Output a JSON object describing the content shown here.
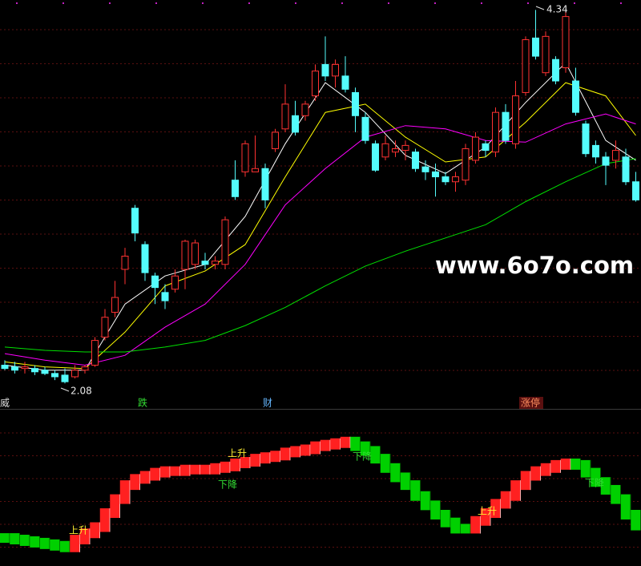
{
  "chart_data": {
    "type": "candlestick",
    "ylim": [
      1.95,
      4.4
    ],
    "up_color": "#ff3232",
    "down_color": "#54fcfc",
    "ohlc": [
      [
        2.19,
        2.22,
        2.16,
        2.17
      ],
      [
        2.18,
        2.21,
        2.14,
        2.16
      ],
      [
        2.17,
        2.21,
        2.14,
        2.18
      ],
      [
        2.17,
        2.19,
        2.13,
        2.15
      ],
      [
        2.16,
        2.18,
        2.13,
        2.14
      ],
      [
        2.14,
        2.16,
        2.1,
        2.12
      ],
      [
        2.13,
        2.17,
        2.08,
        2.09
      ],
      [
        2.12,
        2.19,
        2.11,
        2.16
      ],
      [
        2.16,
        2.19,
        2.14,
        2.18
      ],
      [
        2.19,
        2.36,
        2.18,
        2.34
      ],
      [
        2.36,
        2.53,
        2.34,
        2.48
      ],
      [
        2.51,
        2.7,
        2.48,
        2.6
      ],
      [
        2.77,
        2.9,
        2.68,
        2.85
      ],
      [
        3.14,
        3.16,
        2.94,
        2.99
      ],
      [
        2.92,
        2.94,
        2.7,
        2.75
      ],
      [
        2.73,
        2.75,
        2.56,
        2.66
      ],
      [
        2.63,
        2.68,
        2.53,
        2.58
      ],
      [
        2.65,
        2.77,
        2.63,
        2.73
      ],
      [
        2.77,
        2.95,
        2.65,
        2.94
      ],
      [
        2.8,
        2.95,
        2.77,
        2.93
      ],
      [
        2.82,
        2.87,
        2.77,
        2.8
      ],
      [
        2.8,
        2.85,
        2.77,
        2.82
      ],
      [
        2.8,
        3.09,
        2.77,
        3.07
      ],
      [
        3.31,
        3.43,
        3.19,
        3.21
      ],
      [
        3.36,
        3.55,
        3.33,
        3.53
      ],
      [
        3.36,
        3.58,
        3.36,
        3.38
      ],
      [
        3.38,
        3.41,
        3.14,
        3.19
      ],
      [
        3.5,
        3.62,
        3.48,
        3.6
      ],
      [
        3.62,
        3.89,
        3.6,
        3.77
      ],
      [
        3.7,
        3.79,
        3.58,
        3.6
      ],
      [
        3.7,
        3.79,
        3.67,
        3.77
      ],
      [
        3.82,
        4.01,
        3.79,
        3.97
      ],
      [
        4.01,
        4.18,
        3.91,
        3.94
      ],
      [
        3.94,
        4.04,
        3.87,
        4.01
      ],
      [
        3.94,
        4.06,
        3.84,
        3.86
      ],
      [
        3.84,
        3.87,
        3.6,
        3.7
      ],
      [
        3.69,
        3.72,
        3.53,
        3.55
      ],
      [
        3.53,
        3.55,
        3.36,
        3.37
      ],
      [
        3.45,
        3.58,
        3.43,
        3.53
      ],
      [
        3.48,
        3.55,
        3.45,
        3.5
      ],
      [
        3.49,
        3.55,
        3.43,
        3.52
      ],
      [
        3.48,
        3.5,
        3.36,
        3.38
      ],
      [
        3.39,
        3.43,
        3.31,
        3.36
      ],
      [
        3.36,
        3.41,
        3.21,
        3.33
      ],
      [
        3.33,
        3.36,
        3.28,
        3.3
      ],
      [
        3.3,
        3.36,
        3.24,
        3.33
      ],
      [
        3.31,
        3.53,
        3.28,
        3.5
      ],
      [
        3.43,
        3.6,
        3.41,
        3.57
      ],
      [
        3.53,
        3.55,
        3.45,
        3.49
      ],
      [
        3.48,
        3.75,
        3.45,
        3.72
      ],
      [
        3.72,
        3.77,
        3.53,
        3.55
      ],
      [
        3.53,
        3.91,
        3.5,
        3.82
      ],
      [
        3.84,
        4.18,
        3.82,
        4.16
      ],
      [
        4.17,
        4.34,
        4.04,
        4.06
      ],
      [
        3.96,
        4.21,
        3.94,
        4.18
      ],
      [
        4.04,
        4.06,
        3.89,
        3.91
      ],
      [
        3.99,
        4.33,
        3.96,
        4.3
      ],
      [
        3.91,
        3.99,
        3.7,
        3.72
      ],
      [
        3.65,
        3.67,
        3.45,
        3.47
      ],
      [
        3.52,
        3.55,
        3.41,
        3.45
      ],
      [
        3.45,
        3.48,
        3.28,
        3.4
      ],
      [
        3.43,
        3.55,
        3.38,
        3.49
      ],
      [
        3.45,
        3.5,
        3.28,
        3.3
      ],
      [
        3.3,
        3.36,
        3.18,
        3.19
      ]
    ],
    "series": [
      {
        "color": "#ffffff",
        "x": [
          0,
          4,
          8,
          12,
          16,
          20,
          24,
          28,
          32,
          36,
          40,
          44,
          48,
          52,
          56,
          60,
          63
        ],
        "values": [
          2.19,
          2.16,
          2.16,
          2.56,
          2.73,
          2.8,
          3.09,
          3.53,
          3.9,
          3.72,
          3.46,
          3.35,
          3.51,
          3.78,
          4.02,
          3.55,
          3.43
        ]
      },
      {
        "color": "#ffff00",
        "x": [
          0,
          4,
          8,
          12,
          16,
          20,
          24,
          28,
          32,
          36,
          40,
          44,
          48,
          52,
          56,
          60,
          63
        ],
        "values": [
          2.21,
          2.18,
          2.17,
          2.39,
          2.67,
          2.76,
          2.92,
          3.33,
          3.72,
          3.77,
          3.57,
          3.42,
          3.45,
          3.66,
          3.9,
          3.82,
          3.58
        ]
      },
      {
        "color": "#ff00ff",
        "x": [
          0,
          4,
          8,
          12,
          16,
          20,
          24,
          28,
          32,
          36,
          40,
          44,
          48,
          52,
          56,
          60,
          63
        ],
        "values": [
          2.26,
          2.22,
          2.19,
          2.25,
          2.42,
          2.56,
          2.8,
          3.16,
          3.38,
          3.57,
          3.64,
          3.62,
          3.55,
          3.54,
          3.65,
          3.71,
          3.65
        ]
      },
      {
        "color": "#00e000",
        "x": [
          0,
          4,
          8,
          12,
          16,
          20,
          24,
          28,
          32,
          36,
          40,
          44,
          48,
          52,
          56,
          60,
          63
        ],
        "values": [
          2.3,
          2.28,
          2.27,
          2.27,
          2.3,
          2.34,
          2.43,
          2.54,
          2.67,
          2.79,
          2.88,
          2.96,
          3.04,
          3.18,
          3.3,
          3.41,
          3.44
        ]
      }
    ],
    "high_marker": 4.34,
    "low_marker": 2.08,
    "watermark": "www.6o7o.com",
    "signals": [
      "威",
      "跌",
      "财",
      "涨停"
    ],
    "indicator": {
      "ylim": [
        0,
        100
      ],
      "up_color": "#ff2020",
      "down_color": "#00d000",
      "values": [
        18,
        17,
        16,
        15,
        14,
        13,
        12,
        17,
        21,
        25,
        34,
        43,
        52,
        56,
        58,
        60,
        61,
        61,
        62,
        62,
        62,
        63,
        64,
        66,
        67,
        69,
        70,
        71,
        73,
        74,
        75,
        77,
        78,
        79,
        80,
        77,
        74,
        69,
        63,
        57,
        52,
        45,
        39,
        33,
        28,
        24,
        24,
        29,
        34,
        40,
        45,
        52,
        58,
        61,
        63,
        65,
        66,
        65,
        60,
        54,
        49,
        43,
        33,
        26
      ],
      "annotations": [
        "上升",
        "下降",
        "上升",
        "下降",
        "上升",
        "下降"
      ]
    }
  }
}
